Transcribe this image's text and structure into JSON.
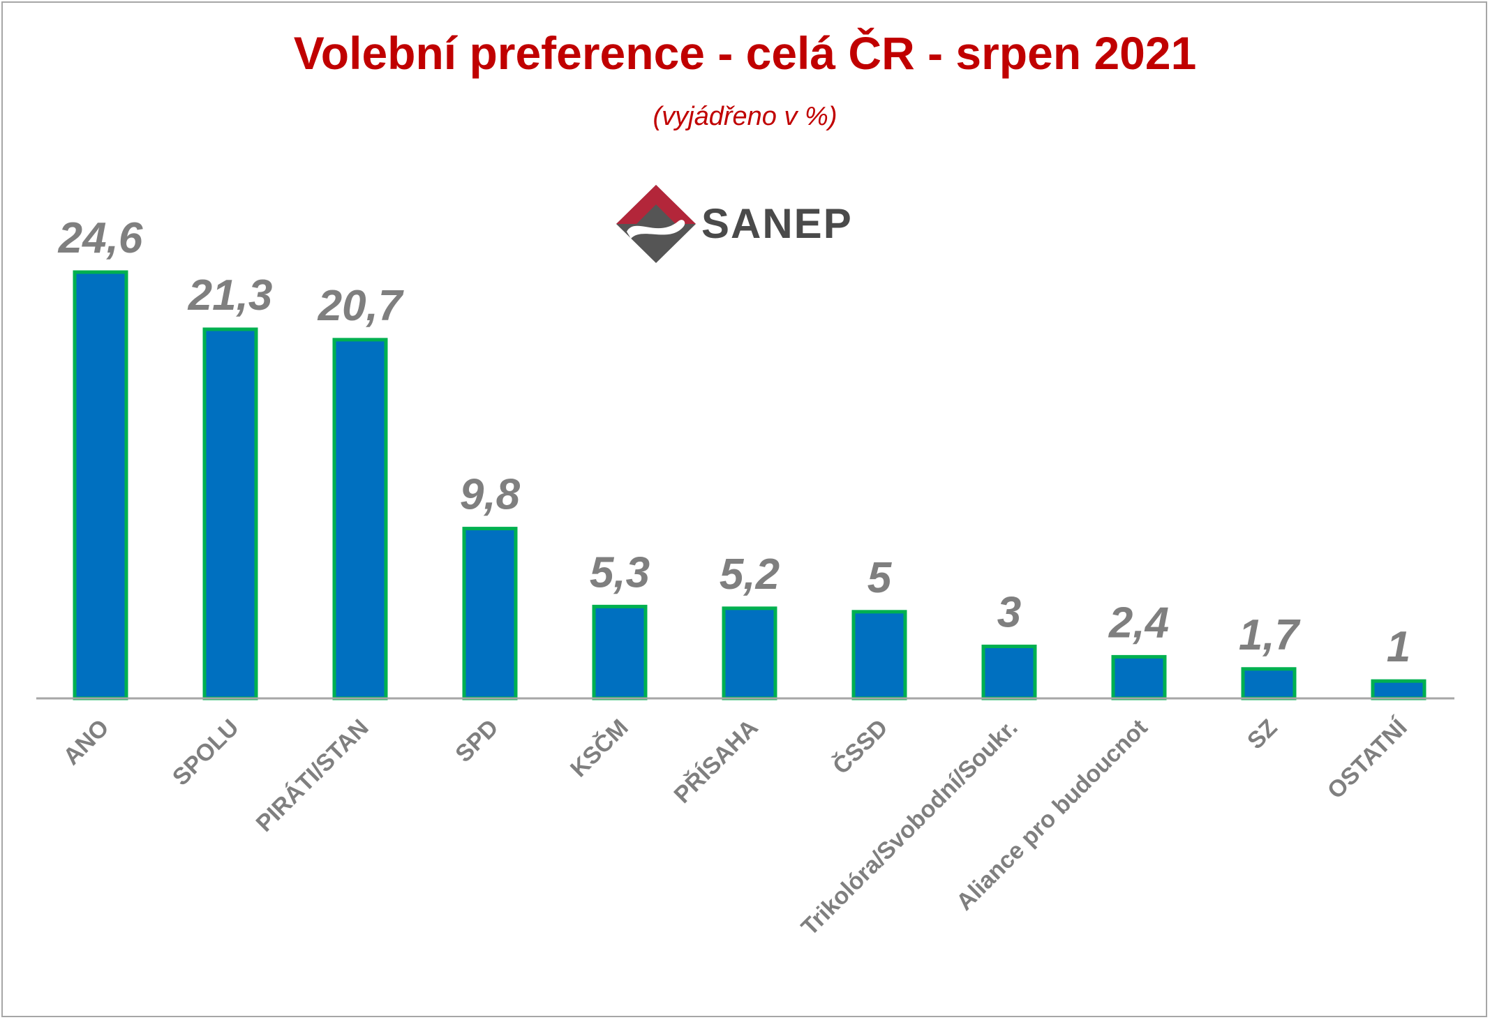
{
  "chart_data": {
    "type": "bar",
    "title": "Volební preference - celá ČR - srpen 2021",
    "subtitle": "(vyjádřeno v %)",
    "categories": [
      "ANO",
      "SPOLU",
      "PIRÁTI/STAN",
      "SPD",
      "KSČM",
      "PŘÍSAHA",
      "ČSSD",
      "Trikolóra/Svobodní/Soukr.",
      "Aliance pro budoucnot",
      "SZ",
      "OSTATNÍ"
    ],
    "values": [
      24.6,
      21.3,
      20.7,
      9.8,
      5.3,
      5.2,
      5,
      3,
      2.4,
      1.7,
      1
    ],
    "value_labels": [
      "24,6",
      "21,3",
      "20,7",
      "9,8",
      "5,3",
      "5,2",
      "5",
      "3",
      "2,4",
      "1,7",
      "1"
    ],
    "ylim": [
      0,
      24.6
    ],
    "grid": false,
    "legend": "none"
  },
  "logo": {
    "text": "SANEP"
  },
  "colors": {
    "title": "#c00000",
    "bar_fill": "#0070c0",
    "bar_border": "#00b050",
    "value_label": "#7f7f7f",
    "category_label": "#7f7f7f",
    "axis": "#a6a6a6",
    "logo_red": "#b3263a",
    "logo_gray": "#555555"
  }
}
